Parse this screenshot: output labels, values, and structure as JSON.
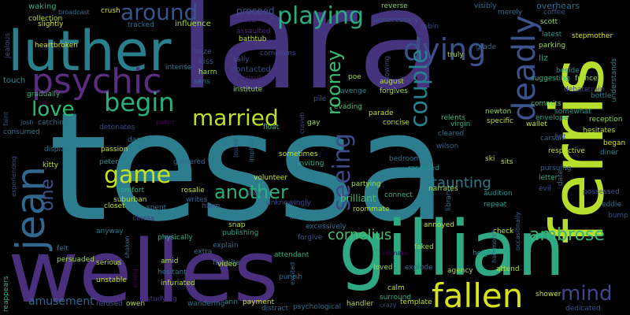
{
  "background": "#000000",
  "palette": [
    "#440154",
    "#46337e",
    "#365c8d",
    "#277f8e",
    "#1fa187",
    "#4ac16d",
    "#a0da39",
    "#fde725"
  ],
  "words": [
    {
      "text": "tessa",
      "color": "#2c7d8e"
    },
    {
      "text": "lara",
      "color": "#46337e"
    },
    {
      "text": "welles",
      "color": "#4a2f7e"
    },
    {
      "text": "gillian",
      "color": "#2ea983"
    },
    {
      "text": "ferris",
      "color": "#b7de2c"
    },
    {
      "text": "luther",
      "color": "#2a7f8d"
    },
    {
      "text": "psychic",
      "color": "#5a2d82"
    },
    {
      "text": "jean",
      "color": "#31668e"
    },
    {
      "text": "fallen",
      "color": "#d8e219"
    },
    {
      "text": "dying",
      "color": "#3a528b"
    },
    {
      "text": "playing",
      "color": "#27ad81"
    },
    {
      "text": "around",
      "color": "#39548b"
    },
    {
      "text": "deadly",
      "color": "#3b528b"
    },
    {
      "text": "couple",
      "color": "#26828e"
    },
    {
      "text": "begin",
      "color": "#29af7f"
    },
    {
      "text": "married",
      "color": "#bddf26"
    },
    {
      "text": "love",
      "color": "#2dbb76"
    },
    {
      "text": "game",
      "color": "#c5e021"
    },
    {
      "text": "seeing",
      "color": "#3e4a89"
    },
    {
      "text": "rooney",
      "color": "#3ebc73"
    },
    {
      "text": "another",
      "color": "#2ab07f"
    },
    {
      "text": "ambrose",
      "color": "#35b779"
    },
    {
      "text": "mind",
      "color": "#3f4889"
    },
    {
      "text": "one",
      "color": "#3b528b"
    },
    {
      "text": "cornelius",
      "color": "#46c06f"
    },
    {
      "text": "taunting",
      "color": "#2a7b8e"
    },
    {
      "text": "amusement",
      "color": "#31688e"
    },
    {
      "text": "brilliant",
      "color": "#46c06f"
    },
    {
      "text": "proceed",
      "color": "#3a548c"
    },
    {
      "text": "overhears",
      "color": "#2d718e"
    },
    {
      "text": "complains",
      "color": "#3f4788"
    },
    {
      "text": "kiss",
      "color": "#3b528b"
    },
    {
      "text": "harm",
      "color": "#8fd744"
    },
    {
      "text": "contacted",
      "color": "#3e4989"
    },
    {
      "text": "institute",
      "color": "#8fd744"
    },
    {
      "text": "assaulted",
      "color": "#482576"
    },
    {
      "text": "sally",
      "color": "#3b528b"
    },
    {
      "text": "bathtub",
      "color": "#b8de29"
    },
    {
      "text": "maze",
      "color": "#3e4a89"
    },
    {
      "text": "intense",
      "color": "#297b8e"
    },
    {
      "text": "heartbroken",
      "color": "#d2e21b"
    },
    {
      "text": "capsule",
      "color": "#482173"
    },
    {
      "text": "gradually",
      "color": "#35b779"
    },
    {
      "text": "touch",
      "color": "#21918c"
    },
    {
      "text": "sens",
      "color": "#2c728e"
    },
    {
      "text": "tracked",
      "color": "#2c728e"
    },
    {
      "text": "influence",
      "color": "#a5db36"
    },
    {
      "text": "crush",
      "color": "#d2e21b"
    },
    {
      "text": "collection",
      "color": "#c2df23"
    },
    {
      "text": "slightly",
      "color": "#d2e21b"
    },
    {
      "text": "broadcast",
      "color": "#2c728e"
    },
    {
      "text": "waking",
      "color": "#2ab07f"
    },
    {
      "text": "jealous",
      "color": "#3e4a89"
    },
    {
      "text": "elected",
      "color": "#46337e"
    },
    {
      "text": "reverse",
      "color": "#7ad151"
    },
    {
      "text": "unnecessary",
      "color": "#3b528b"
    },
    {
      "text": "robin",
      "color": "#3e4a89"
    },
    {
      "text": "truly",
      "color": "#a5db36"
    },
    {
      "text": "grade",
      "color": "#31688e"
    },
    {
      "text": "visibly",
      "color": "#2c728e"
    },
    {
      "text": "merely",
      "color": "#2c728e"
    },
    {
      "text": "coffee",
      "color": "#3b528b"
    },
    {
      "text": "scott",
      "color": "#8fd744"
    },
    {
      "text": "latest",
      "color": "#21918c"
    },
    {
      "text": "parking",
      "color": "#a0da39"
    },
    {
      "text": "liz",
      "color": "#1fa187"
    },
    {
      "text": "stepmother",
      "color": "#d8e219"
    },
    {
      "text": "understands",
      "color": "#25848e"
    },
    {
      "text": "somewhat",
      "color": "#1f9e89"
    },
    {
      "text": "reception",
      "color": "#8fd744"
    },
    {
      "text": "hesitates",
      "color": "#c8e020"
    },
    {
      "text": "began",
      "color": "#d8e219"
    },
    {
      "text": "beside",
      "color": "#21918c"
    },
    {
      "text": "france",
      "color": "#a0da39"
    },
    {
      "text": "suggesting",
      "color": "#2ab07f"
    },
    {
      "text": "debate",
      "color": "#3e4a89"
    },
    {
      "text": "commits",
      "color": "#4ac16d"
    },
    {
      "text": "newton",
      "color": "#8fd744"
    },
    {
      "text": "specific",
      "color": "#b5de2b"
    },
    {
      "text": "wallet",
      "color": "#c2df23"
    },
    {
      "text": "envelope",
      "color": "#1fa187"
    },
    {
      "text": "bottle",
      "color": "#26828e"
    },
    {
      "text": "strain",
      "color": "#3b2c6b"
    },
    {
      "text": "hot",
      "color": "#3e4a89"
    },
    {
      "text": "diner",
      "color": "#25848e"
    },
    {
      "text": "carson",
      "color": "#31688e"
    },
    {
      "text": "respective",
      "color": "#c2df23"
    },
    {
      "text": "showing",
      "color": "#3f4788"
    },
    {
      "text": "poe",
      "color": "#a0da39"
    },
    {
      "text": "august",
      "color": "#b5de2b"
    },
    {
      "text": "forgives",
      "color": "#a5db36"
    },
    {
      "text": "avenge",
      "color": "#26828e"
    },
    {
      "text": "evading",
      "color": "#46c06f"
    },
    {
      "text": "pile",
      "color": "#3b528b"
    },
    {
      "text": "parade",
      "color": "#bddf26"
    },
    {
      "text": "relents",
      "color": "#35b779"
    },
    {
      "text": "virgin",
      "color": "#2ab07f"
    },
    {
      "text": "concise",
      "color": "#b5de2b"
    },
    {
      "text": "cleared",
      "color": "#2c728e"
    },
    {
      "text": "wilson",
      "color": "#31688e"
    },
    {
      "text": "craven",
      "color": "#3e4a89"
    },
    {
      "text": "gay",
      "color": "#a5db36"
    },
    {
      "text": "float",
      "color": "#35b779"
    },
    {
      "text": "louise",
      "color": "#3b528b"
    },
    {
      "text": "implied",
      "color": "#2c728e"
    },
    {
      "text": "sometimes",
      "color": "#c8e020"
    },
    {
      "text": "inviting",
      "color": "#2ab07f"
    },
    {
      "text": "bedroom",
      "color": "#2c728e"
    },
    {
      "text": "recorded",
      "color": "#21918c"
    },
    {
      "text": "narrates",
      "color": "#a0da39"
    },
    {
      "text": "ski",
      "color": "#b8de29"
    },
    {
      "text": "sits",
      "color": "#b5de2b"
    },
    {
      "text": "pursuing",
      "color": "#31688e"
    },
    {
      "text": "letter",
      "color": "#2ab07f"
    },
    {
      "text": "evil",
      "color": "#3b528b"
    },
    {
      "text": "date",
      "color": "#31688e"
    },
    {
      "text": "possessed",
      "color": "#3b528b"
    },
    {
      "text": "eddie",
      "color": "#2c728e"
    },
    {
      "text": "bump",
      "color": "#3b528b"
    },
    {
      "text": "audition",
      "color": "#21918c"
    },
    {
      "text": "repeat",
      "color": "#1fa187"
    },
    {
      "text": "library",
      "color": "#2c728e"
    },
    {
      "text": "connect",
      "color": "#2ab07f"
    },
    {
      "text": "partying",
      "color": "#a0da39"
    },
    {
      "text": "roommate",
      "color": "#b5de2b"
    },
    {
      "text": "unknowingly",
      "color": "#3e4a89"
    },
    {
      "text": "volunteer",
      "color": "#c8e020"
    },
    {
      "text": "shout",
      "color": "#31688e"
    },
    {
      "text": "excessively",
      "color": "#2c728e"
    },
    {
      "text": "link",
      "color": "#26828e"
    },
    {
      "text": "forgive",
      "color": "#3b528b"
    },
    {
      "text": "attendant",
      "color": "#2ab07f"
    },
    {
      "text": "publishing",
      "color": "#1fa187"
    },
    {
      "text": "snap",
      "color": "#bddf26"
    },
    {
      "text": "harm",
      "color": "#3e4a89"
    },
    {
      "text": "explain",
      "color": "#2c728e"
    },
    {
      "text": "favorite",
      "color": "#2c728e"
    },
    {
      "text": "video",
      "color": "#b5de2b"
    },
    {
      "text": "excited",
      "color": "#31688e"
    },
    {
      "text": "punish",
      "color": "#2c728e"
    },
    {
      "text": "faked",
      "color": "#a0da39"
    },
    {
      "text": "intimate",
      "color": "#440154"
    },
    {
      "text": "explode",
      "color": "#31688e"
    },
    {
      "text": "agency",
      "color": "#b5de2b"
    },
    {
      "text": "height",
      "color": "#21918c"
    },
    {
      "text": "annoyed",
      "color": "#c8e020"
    },
    {
      "text": "check",
      "color": "#c8e020"
    },
    {
      "text": "hammond",
      "color": "#2c728e"
    },
    {
      "text": "occasionally",
      "color": "#31688e"
    },
    {
      "text": "attend",
      "color": "#b5de2b"
    },
    {
      "text": "dedicated",
      "color": "#3b528b"
    },
    {
      "text": "shower",
      "color": "#c8e020"
    },
    {
      "text": "loved",
      "color": "#a0da39"
    },
    {
      "text": "calm",
      "color": "#b5de2b"
    },
    {
      "text": "surround",
      "color": "#2ab07f"
    },
    {
      "text": "template",
      "color": "#c2df23"
    },
    {
      "text": "crazy",
      "color": "#3e4a89"
    },
    {
      "text": "handler",
      "color": "#b5de2b"
    },
    {
      "text": "psychological",
      "color": "#2c728e"
    },
    {
      "text": "distract",
      "color": "#31688e"
    },
    {
      "text": "payment",
      "color": "#c8e020"
    },
    {
      "text": "ann",
      "color": "#21918c"
    },
    {
      "text": "wandering",
      "color": "#2c728e"
    },
    {
      "text": "studying",
      "color": "#46337e"
    },
    {
      "text": "owen",
      "color": "#b5de2b"
    },
    {
      "text": "refused",
      "color": "#3b528b"
    },
    {
      "text": "infuriated",
      "color": "#b5de2b"
    },
    {
      "text": "hesitant",
      "color": "#2c728e"
    },
    {
      "text": "amid",
      "color": "#a0da39"
    },
    {
      "text": "physically",
      "color": "#2ab07f"
    },
    {
      "text": "extra",
      "color": "#2c728e"
    },
    {
      "text": "unstable",
      "color": "#c2df23"
    },
    {
      "text": "serious",
      "color": "#b5de2b"
    },
    {
      "text": "persuaded",
      "color": "#a0da39"
    },
    {
      "text": "anyway",
      "color": "#26828e"
    },
    {
      "text": "felt",
      "color": "#2c728e"
    },
    {
      "text": "shaken",
      "color": "#2c728e"
    },
    {
      "text": "wrong",
      "color": "#440154"
    },
    {
      "text": "illness",
      "color": "#46337e"
    },
    {
      "text": "suburban",
      "color": "#b5de2b"
    },
    {
      "text": "writes",
      "color": "#31688e"
    },
    {
      "text": "rosalie",
      "color": "#c2df23"
    },
    {
      "text": "comfort",
      "color": "#2ab07f"
    },
    {
      "text": "closet",
      "color": "#bddf26"
    },
    {
      "text": "spent",
      "color": "#2c728e"
    },
    {
      "text": "gathered",
      "color": "#31688e"
    },
    {
      "text": "peterson",
      "color": "#21918c"
    },
    {
      "text": "passion",
      "color": "#c8e020"
    },
    {
      "text": "dare",
      "color": "#2c728e"
    },
    {
      "text": "detonates",
      "color": "#3e4a89"
    },
    {
      "text": "peter",
      "color": "#440154"
    },
    {
      "text": "kitty",
      "color": "#bddf26"
    },
    {
      "text": "display",
      "color": "#2c728e"
    },
    {
      "text": "experiencing",
      "color": "#3e4a89"
    },
    {
      "text": "catching",
      "color": "#2c728e"
    },
    {
      "text": "josh",
      "color": "#31688e"
    },
    {
      "text": "consumed",
      "color": "#2c728e"
    },
    {
      "text": "bit",
      "color": "#440154"
    },
    {
      "text": "faint",
      "color": "#3e4a89"
    },
    {
      "text": "reappears",
      "color": "#2ab07f"
    }
  ]
}
